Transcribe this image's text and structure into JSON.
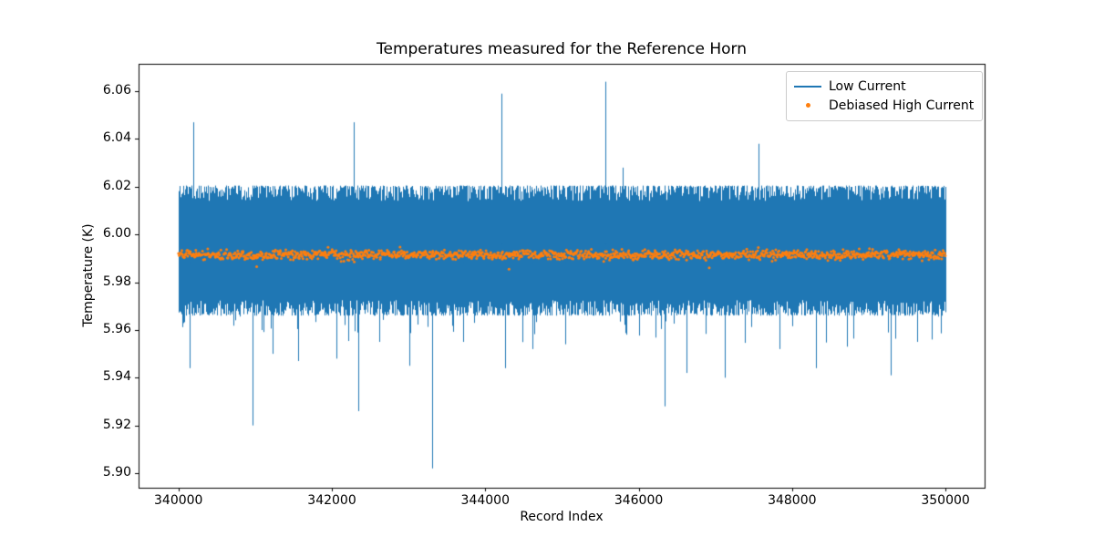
{
  "title": "Temperatures measured for the Reference Horn",
  "axes": {
    "xlabel": "Record Index",
    "ylabel": "Temperature (K)",
    "xlim": [
      339480,
      350510
    ],
    "ylim": [
      5.8939,
      6.0715
    ],
    "xticks": [
      {
        "value": 340000,
        "label": "340000"
      },
      {
        "value": 342000,
        "label": "342000"
      },
      {
        "value": 344000,
        "label": "344000"
      },
      {
        "value": 346000,
        "label": "346000"
      },
      {
        "value": 348000,
        "label": "348000"
      },
      {
        "value": 350000,
        "label": "350000"
      }
    ],
    "yticks": [
      {
        "value": 5.9,
        "label": "5.90"
      },
      {
        "value": 5.92,
        "label": "5.92"
      },
      {
        "value": 5.94,
        "label": "5.94"
      },
      {
        "value": 5.96,
        "label": "5.96"
      },
      {
        "value": 5.98,
        "label": "5.98"
      },
      {
        "value": 6.0,
        "label": "6.00"
      },
      {
        "value": 6.02,
        "label": "6.02"
      },
      {
        "value": 6.04,
        "label": "6.04"
      },
      {
        "value": 6.06,
        "label": "6.06"
      }
    ]
  },
  "legend": {
    "entries": [
      {
        "label": "Low Current",
        "color": "#1f77b4",
        "marker": "line"
      },
      {
        "label": "Debiased High Current",
        "color": "#ff7f0e",
        "marker": "dot"
      }
    ]
  },
  "chart_data": {
    "type": "line+scatter",
    "title": "Temperatures measured for the Reference Horn",
    "xlabel": "Record Index",
    "ylabel": "Temperature (K)",
    "xlim": [
      339480,
      350510
    ],
    "ylim": [
      5.8939,
      6.0715
    ],
    "series": [
      {
        "name": "Low Current",
        "type": "line",
        "color": "#1f77b4",
        "x_range": [
          340000,
          350000
        ],
        "baseline": 5.9935,
        "noise_band": [
          5.966,
          6.0205
        ],
        "spikes_up": [
          [
            340190,
            6.047
          ],
          [
            342290,
            6.047
          ],
          [
            344210,
            6.059
          ],
          [
            345560,
            6.064
          ],
          [
            345790,
            6.028
          ],
          [
            347560,
            6.038
          ]
        ],
        "spikes_down": [
          [
            340140,
            5.944
          ],
          [
            340960,
            5.92
          ],
          [
            341230,
            5.95
          ],
          [
            341560,
            5.947
          ],
          [
            342060,
            5.948
          ],
          [
            342350,
            5.926
          ],
          [
            342620,
            5.955
          ],
          [
            343010,
            5.945
          ],
          [
            343310,
            5.902
          ],
          [
            343710,
            5.955
          ],
          [
            344260,
            5.944
          ],
          [
            344620,
            5.952
          ],
          [
            345040,
            5.954
          ],
          [
            346340,
            5.928
          ],
          [
            346620,
            5.942
          ],
          [
            347120,
            5.94
          ],
          [
            347830,
            5.952
          ],
          [
            348310,
            5.944
          ],
          [
            348720,
            5.953
          ],
          [
            349290,
            5.941
          ],
          [
            349820,
            5.956
          ]
        ]
      },
      {
        "name": "Debiased High Current",
        "type": "scatter",
        "color": "#ff7f0e",
        "x_range": [
          340000,
          350000
        ],
        "baseline": 5.9915,
        "noise_band": [
          5.987,
          5.996
        ],
        "outliers": [
          [
            341020,
            5.9865
          ],
          [
            344310,
            5.9855
          ],
          [
            346920,
            5.986
          ]
        ]
      }
    ]
  }
}
